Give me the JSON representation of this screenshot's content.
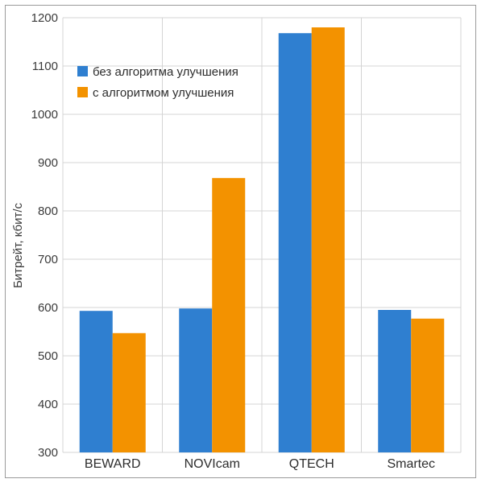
{
  "chart_data": {
    "type": "bar",
    "title": "",
    "xlabel": "",
    "ylabel": "Битрейт, кбит/с",
    "ylim": [
      300,
      1200
    ],
    "yticks": [
      300,
      400,
      500,
      600,
      700,
      800,
      900,
      1000,
      1100,
      1200
    ],
    "grid": true,
    "legend_position": "top-left",
    "categories": [
      "BEWARD",
      "NOVIcam",
      "QTECH",
      "Smartec"
    ],
    "series": [
      {
        "name": "без алгоритма улучшения",
        "color": "#2f7fd0",
        "values": [
          593,
          598,
          1168,
          595
        ]
      },
      {
        "name": "с алгоритмом улучшения",
        "color": "#f39200",
        "values": [
          547,
          868,
          1180,
          577
        ]
      }
    ]
  }
}
